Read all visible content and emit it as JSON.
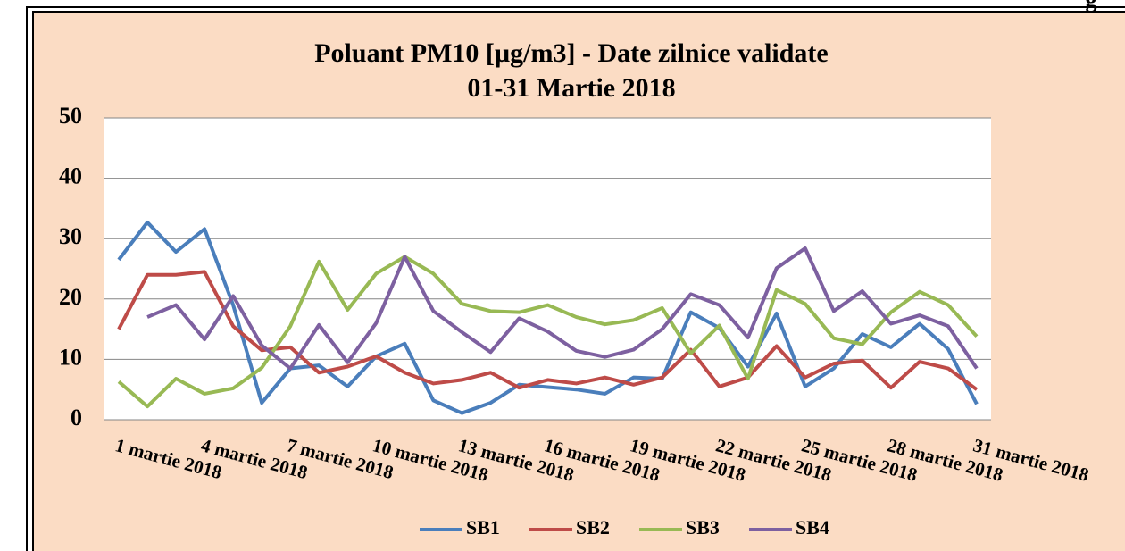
{
  "fragment": "g",
  "chart_data": {
    "type": "line",
    "title": "Poluant PM10 [µg/m3] - Date zilnice validate",
    "subtitle": "01-31 Martie 2018",
    "categories": [
      "1 martie 2018",
      null,
      null,
      "4 martie 2018",
      null,
      null,
      "7 martie 2018",
      null,
      null,
      "10 martie 2018",
      null,
      null,
      "13 martie 2018",
      null,
      null,
      "16 martie 2018",
      null,
      null,
      "19 martie 2018",
      null,
      null,
      "22 martie 2018",
      null,
      null,
      "25 martie 2018",
      null,
      null,
      "28 martie 2018",
      null,
      null,
      "31 martie 2018"
    ],
    "series": [
      {
        "name": "SB1",
        "color": "#4a7ebb",
        "values": [
          26.5,
          32.7,
          27.8,
          31.6,
          19,
          2.8,
          8.5,
          9,
          5.5,
          10.5,
          12.6,
          3.2,
          1.1,
          2.8,
          5.8,
          5.4,
          5,
          4.3,
          7,
          6.8,
          17.8,
          15.2,
          8.8,
          17.6,
          5.5,
          8.5,
          14.2,
          12,
          15.9,
          11.7,
          2.6
        ]
      },
      {
        "name": "SB2",
        "color": "#be4b48",
        "values": [
          15,
          24,
          24,
          24.5,
          15.5,
          11.5,
          12,
          7.8,
          8.8,
          10.5,
          7.8,
          6,
          6.6,
          7.8,
          5.3,
          6.6,
          6,
          7,
          5.8,
          7,
          11.6,
          5.5,
          7,
          12.2,
          7,
          9.3,
          9.8,
          5.3,
          9.6,
          8.5,
          5
        ]
      },
      {
        "name": "SB3",
        "color": "#98b954",
        "values": [
          6.3,
          2.2,
          6.8,
          4.3,
          5.2,
          8.6,
          15.5,
          26.2,
          18.2,
          24.2,
          27,
          24.2,
          19.2,
          18,
          17.8,
          19,
          17,
          15.8,
          16.5,
          18.5,
          11,
          15.6,
          6.8,
          21.5,
          19.2,
          13.5,
          12.5,
          17.8,
          21.2,
          19,
          13.8
        ]
      },
      {
        "name": "SB4",
        "color": "#7d60a0",
        "values": [
          null,
          17,
          19,
          13.3,
          20.5,
          12.3,
          8.5,
          15.7,
          9.5,
          16,
          27,
          18,
          14.5,
          11.2,
          16.8,
          14.6,
          11.4,
          10.4,
          11.6,
          15,
          20.8,
          19,
          13.6,
          25.1,
          28.4,
          18,
          21.3,
          15.9,
          17.3,
          15.5,
          8.5
        ]
      }
    ],
    "ylim": [
      0,
      50
    ],
    "yticks": [
      0,
      10,
      20,
      30,
      40,
      50
    ],
    "grid": true,
    "legend": "bottom"
  }
}
